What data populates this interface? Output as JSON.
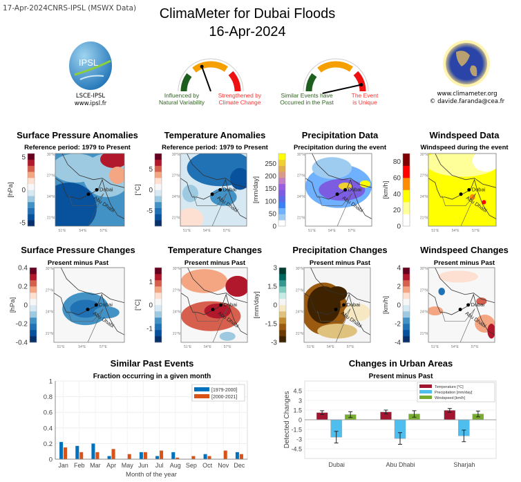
{
  "header": {
    "stamp": "17-Apr-2024CNRS-IPSL (MSWX Data)",
    "title": "ClimaMeter for Dubai Floods",
    "date": "16-Apr-2024",
    "left_logo": {
      "logo_text": "IPSL",
      "line1": "LSCE-IPSL",
      "line2": "www.ipsl.fr"
    },
    "right_logo": {
      "line1": "www.climameter.org",
      "line2": "© davide.faranda@cea.fr"
    },
    "gauges": [
      {
        "left_label": [
          "Influenced by",
          "Natural Variability"
        ],
        "right_label": [
          "Strengthened by",
          "Climate Change"
        ],
        "level": 0.39
      },
      {
        "left_label": [
          "Similar Events have",
          "Occurred in the Past"
        ],
        "right_label": [
          "The Event",
          "is Unique"
        ],
        "level": 0.92
      }
    ],
    "colors": {
      "green": "#1e5e1e",
      "orange": "#f5a000",
      "red": "#ee1111",
      "left_text": "#2f5f1f",
      "right_text": "#ff3333"
    }
  },
  "maps": {
    "lat_ticks": [
      "30°N",
      "27°N",
      "24°N",
      "21°N"
    ],
    "lon_ticks": [
      "51°E",
      "54°E",
      "57°E"
    ],
    "cities": [
      "Dubai",
      "Abu Dhabi"
    ],
    "panels": [
      {
        "title": "Surface Pressure Anomalies",
        "subtitle": "Reference period: 1979 to Present",
        "unit": "[hPa]",
        "ticks": [
          -5,
          0,
          5
        ],
        "range": [
          -5.5,
          5.5
        ],
        "cmap": "rdbu"
      },
      {
        "title": "Temperature Anomalies",
        "subtitle": "Reference period: 1979 to Present",
        "unit": "[°C]",
        "ticks": [
          -5,
          0,
          5
        ],
        "range": [
          -8.75,
          8.75
        ],
        "cmap": "rdbu"
      },
      {
        "title": "Precipitation Data",
        "subtitle": "Precipitation during the event",
        "unit": "[mm/day]",
        "ticks": [
          0,
          50,
          100,
          150,
          200,
          250
        ],
        "range": [
          0,
          290
        ],
        "cmap": "precip"
      },
      {
        "title": "Windspeed Data",
        "subtitle": "Windspeed during the event",
        "unit": "[km/h]",
        "ticks": [
          0,
          20,
          40,
          60,
          80
        ],
        "range": [
          0,
          90
        ],
        "cmap": "wind"
      },
      {
        "title": "Surface Pressure Changes",
        "subtitle": "Present minus Past",
        "unit": "[hPa]",
        "ticks": [
          -0.4,
          -0.2,
          0,
          0.2,
          0.4
        ],
        "range": [
          -0.4,
          0.4
        ],
        "cmap": "rdbu"
      },
      {
        "title": "Temperature Changes",
        "subtitle": "Present minus Past",
        "unit": "[°C]",
        "ticks": [
          -1,
          0,
          1
        ],
        "range": [
          -1.6,
          1.6
        ],
        "cmap": "rdbu"
      },
      {
        "title": "Precipitation Changes",
        "subtitle": "Present minus Past",
        "unit": "[mm/day]",
        "ticks": [
          -3,
          -1.5,
          0,
          1.5,
          3
        ],
        "range": [
          -3,
          3
        ],
        "cmap": "brbg"
      },
      {
        "title": "Windspeed Changes",
        "subtitle": "Present minus Past",
        "unit": "[km/h]",
        "ticks": [
          -4,
          -2,
          0,
          2,
          4
        ],
        "range": [
          -4,
          4
        ],
        "cmap": "rdbu"
      }
    ],
    "colormaps": {
      "rdbu": [
        "#08306b",
        "#08519c",
        "#2171b5",
        "#4292c6",
        "#9ecae1",
        "#d6e8f2",
        "#f7f7f7",
        "#fde0d2",
        "#f4a582",
        "#d6604d",
        "#b2182b",
        "#67001f"
      ],
      "precip": [
        "#ffffff",
        "#9ecbf0",
        "#6fb0ff",
        "#3b7ff5",
        "#5a6ae8",
        "#7c5ce0",
        "#9a5ee0",
        "#c27fc2",
        "#d89a8a",
        "#e0b050",
        "#f0d030",
        "#ffff00"
      ],
      "wind": [
        "#ffffff",
        "#ffff99",
        "#ffff00",
        "#ff8c00",
        "#ff0000",
        "#800000"
      ],
      "brbg": [
        "#3f2200",
        "#6b3a05",
        "#9a5a10",
        "#c08a30",
        "#dfc27d",
        "#f6e8c3",
        "#f5f5f5",
        "#c7eae5",
        "#80cdc1",
        "#35978f",
        "#01665e",
        "#003c30"
      ]
    }
  },
  "chart_data": [
    {
      "type": "bar",
      "title": "Similar Past Events",
      "subtitle": "Fraction occurring in a given month",
      "xlabel": "Month of the year",
      "ylabel": "",
      "categories": [
        "Jan",
        "Feb",
        "Mar",
        "Apr",
        "May",
        "Jun",
        "Jul",
        "Aug",
        "Sep",
        "Oct",
        "Nov",
        "Dec"
      ],
      "series": [
        {
          "name": "[1979-2000]",
          "color": "#0072bd",
          "values": [
            0.22,
            0.17,
            0.2,
            0.04,
            0,
            0.09,
            0.04,
            0.09,
            0,
            0.065,
            0,
            0.09
          ]
        },
        {
          "name": "[2000-2021]",
          "color": "#d95319",
          "values": [
            0.15,
            0.09,
            0.09,
            0.13,
            0.065,
            0.09,
            0.11,
            0.02,
            0.04,
            0.04,
            0.11,
            0.065
          ]
        }
      ],
      "ylim": [
        0,
        1
      ],
      "yticks": [
        0,
        0.2,
        0.4,
        0.6,
        0.8,
        1
      ],
      "grid": true,
      "legend": "top-right"
    },
    {
      "type": "bar",
      "title": "Changes in Urban Areas",
      "subtitle": "Present minus Past",
      "xlabel": "",
      "ylabel": "Detected Changes",
      "categories": [
        "Dubai",
        "Abu Dhabi",
        "Sharjah"
      ],
      "series": [
        {
          "name": "Temperature [°C]",
          "color": "#a2142f",
          "values": [
            1.1,
            1.2,
            1.45
          ],
          "errors": [
            0.3,
            0.3,
            0.3
          ]
        },
        {
          "name": "Precipitation [mm/day]",
          "color": "#4dbeee",
          "values": [
            -2.7,
            -2.9,
            -2.5
          ],
          "errors": [
            0.9,
            0.9,
            0.9
          ]
        },
        {
          "name": "Windspeed [km/h]",
          "color": "#77ac30",
          "values": [
            0.8,
            0.9,
            0.9
          ],
          "errors": [
            0.45,
            0.5,
            0.45
          ]
        }
      ],
      "ylim": [
        -6,
        6
      ],
      "yticks": [
        -4.5,
        -3,
        -1.5,
        0,
        1.5,
        3,
        4.5
      ],
      "grid": true,
      "legend": "top-right"
    }
  ]
}
